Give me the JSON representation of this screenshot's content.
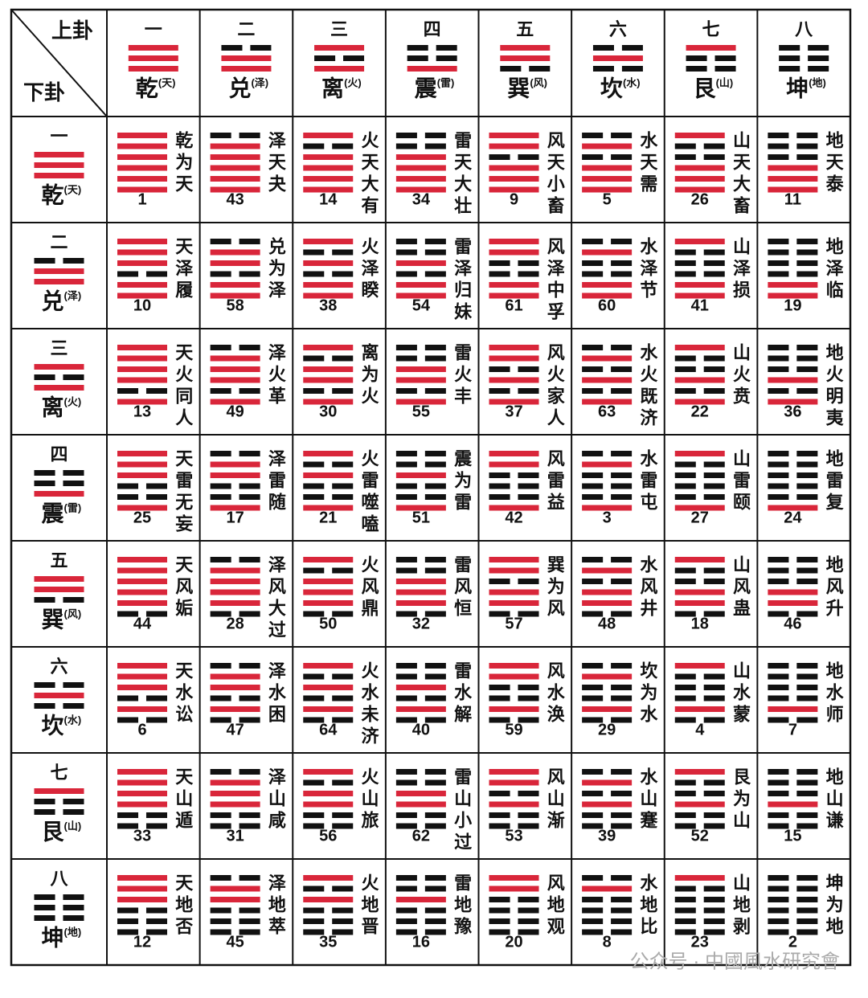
{
  "header": {
    "upper_label": "上卦",
    "lower_label": "下卦"
  },
  "trigrams": [
    {
      "numeral": "一",
      "name": "乾",
      "element": "(天)"
    },
    {
      "numeral": "二",
      "name": "兑",
      "element": "(泽)"
    },
    {
      "numeral": "三",
      "name": "离",
      "element": "(火)"
    },
    {
      "numeral": "四",
      "name": "震",
      "element": "(雷)"
    },
    {
      "numeral": "五",
      "name": "巽",
      "element": "(风)"
    },
    {
      "numeral": "六",
      "name": "坎",
      "element": "(水)"
    },
    {
      "numeral": "七",
      "name": "艮",
      "element": "(山)"
    },
    {
      "numeral": "八",
      "name": "坤",
      "element": "(地)"
    }
  ],
  "hexagrams": [
    [
      {
        "name": "乾为天",
        "number": 1
      },
      {
        "name": "泽天夬",
        "number": 43
      },
      {
        "name": "火天大有",
        "number": 14
      },
      {
        "name": "雷天大壮",
        "number": 34
      },
      {
        "name": "风天小畜",
        "number": 9
      },
      {
        "name": "水天需",
        "number": 5
      },
      {
        "name": "山天大畜",
        "number": 26
      },
      {
        "name": "地天泰",
        "number": 11
      }
    ],
    [
      {
        "name": "天泽履",
        "number": 10
      },
      {
        "name": "兑为泽",
        "number": 58
      },
      {
        "name": "火泽睽",
        "number": 38
      },
      {
        "name": "雷泽归妹",
        "number": 54
      },
      {
        "name": "风泽中孚",
        "number": 61
      },
      {
        "name": "水泽节",
        "number": 60
      },
      {
        "name": "山泽损",
        "number": 41
      },
      {
        "name": "地泽临",
        "number": 19
      }
    ],
    [
      {
        "name": "天火同人",
        "number": 13
      },
      {
        "name": "泽火革",
        "number": 49
      },
      {
        "name": "离为火",
        "number": 30
      },
      {
        "name": "雷火丰",
        "number": 55
      },
      {
        "name": "风火家人",
        "number": 37
      },
      {
        "name": "水火既济",
        "number": 63
      },
      {
        "name": "山火贲",
        "number": 22
      },
      {
        "name": "地火明夷",
        "number": 36
      }
    ],
    [
      {
        "name": "天雷无妄",
        "number": 25
      },
      {
        "name": "泽雷随",
        "number": 17
      },
      {
        "name": "火雷噬嗑",
        "number": 21
      },
      {
        "name": "震为雷",
        "number": 51
      },
      {
        "name": "风雷益",
        "number": 42
      },
      {
        "name": "水雷屯",
        "number": 3
      },
      {
        "name": "山雷颐",
        "number": 27
      },
      {
        "name": "地雷复",
        "number": 24
      }
    ],
    [
      {
        "name": "天风姤",
        "number": 44
      },
      {
        "name": "泽风大过",
        "number": 28
      },
      {
        "name": "火风鼎",
        "number": 50
      },
      {
        "name": "雷风恒",
        "number": 32
      },
      {
        "name": "巽为风",
        "number": 57
      },
      {
        "name": "水风井",
        "number": 48
      },
      {
        "name": "山风蛊",
        "number": 18
      },
      {
        "name": "地风升",
        "number": 46
      }
    ],
    [
      {
        "name": "天水讼",
        "number": 6
      },
      {
        "name": "泽水困",
        "number": 47
      },
      {
        "name": "火水未济",
        "number": 64
      },
      {
        "name": "雷水解",
        "number": 40
      },
      {
        "name": "风水涣",
        "number": 59
      },
      {
        "name": "坎为水",
        "number": 29
      },
      {
        "name": "山水蒙",
        "number": 4
      },
      {
        "name": "地水师",
        "number": 7
      }
    ],
    [
      {
        "name": "天山遁",
        "number": 33
      },
      {
        "name": "泽山咸",
        "number": 31
      },
      {
        "name": "火山旅",
        "number": 56
      },
      {
        "name": "雷山小过",
        "number": 62
      },
      {
        "name": "风山渐",
        "number": 53
      },
      {
        "name": "水山蹇",
        "number": 39
      },
      {
        "name": "艮为山",
        "number": 52
      },
      {
        "name": "地山谦",
        "number": 15
      }
    ],
    [
      {
        "name": "天地否",
        "number": 12
      },
      {
        "name": "泽地萃",
        "number": 45
      },
      {
        "name": "火地晋",
        "number": 35
      },
      {
        "name": "雷地豫",
        "number": 16
      },
      {
        "name": "风地观",
        "number": 20
      },
      {
        "name": "水地比",
        "number": 8
      },
      {
        "name": "山地剥",
        "number": 23
      },
      {
        "name": "坤为地",
        "number": 2
      }
    ]
  ],
  "watermark": "公众号 · 中國風水研究會"
}
